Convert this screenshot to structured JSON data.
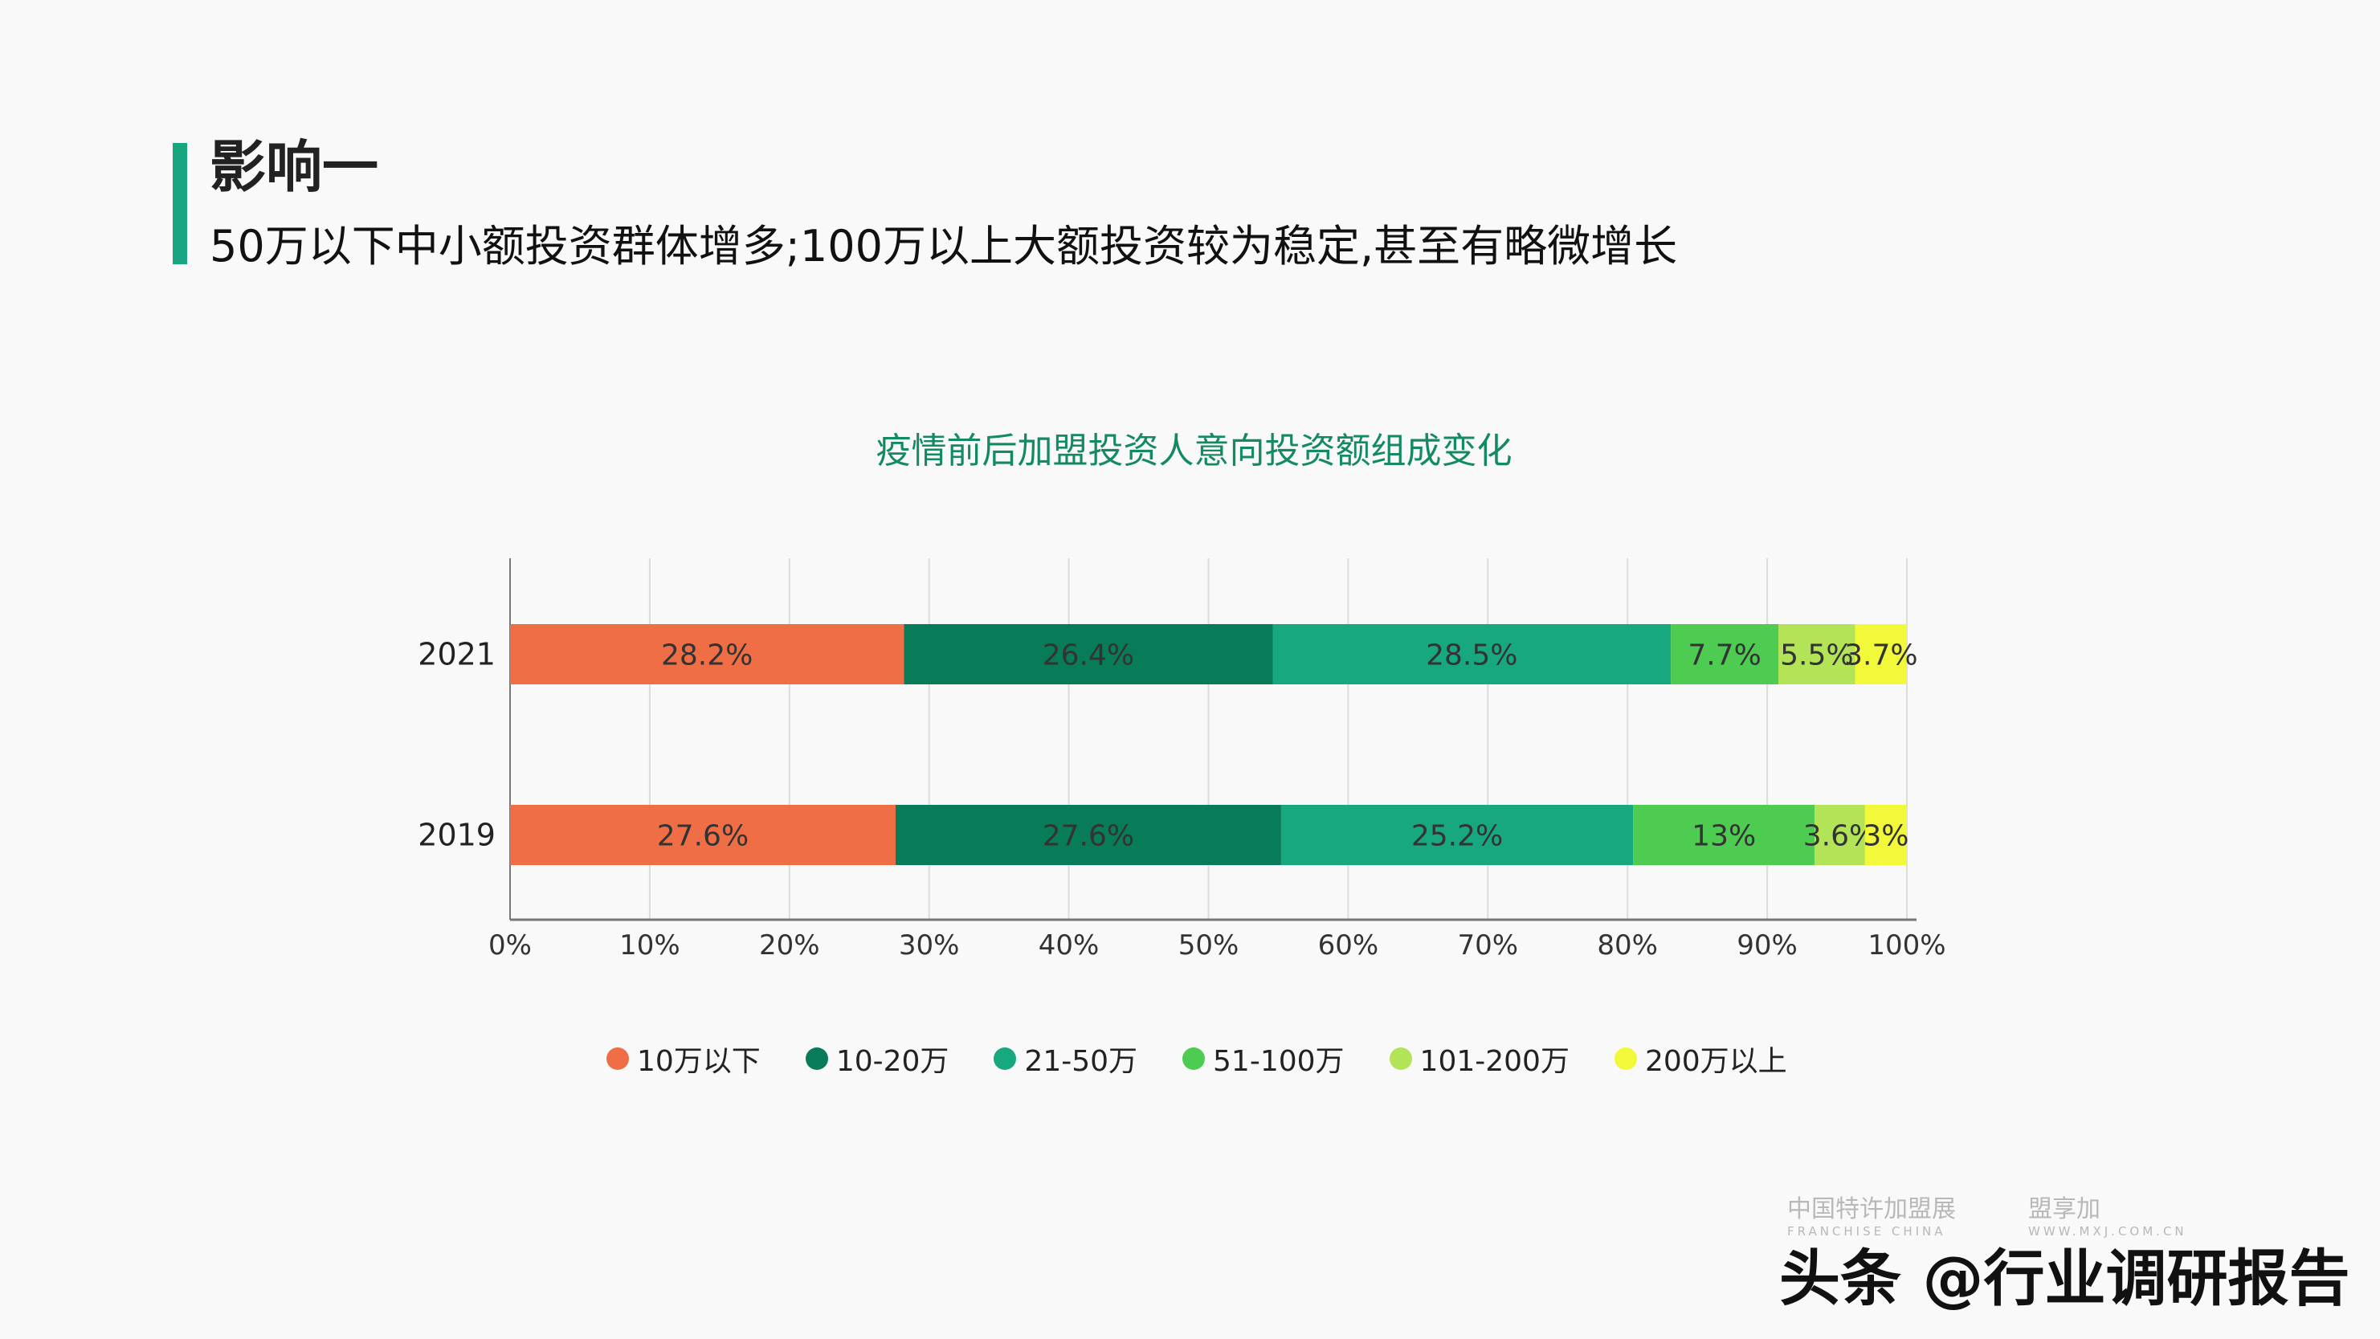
{
  "header": {
    "title": "影响一",
    "subtitle": "50万以下中小额投资群体增多;100万以上大额投资较为稳定,甚至有略微增长",
    "accent_color": "#17a67f"
  },
  "chart_data": {
    "type": "bar",
    "orientation": "horizontal",
    "stacked": "percent",
    "title": "疫情前后加盟投资人意向投资额组成变化",
    "categories": [
      "2021",
      "2019"
    ],
    "series": [
      {
        "name": "10万以下",
        "color": "#ef6e45",
        "values": [
          28.2,
          27.6
        ],
        "labels": [
          "28.2%",
          "27.6%"
        ]
      },
      {
        "name": "10-20万",
        "color": "#087b58",
        "values": [
          26.4,
          27.6
        ],
        "labels": [
          "26.4%",
          "27.6%"
        ]
      },
      {
        "name": "21-50万",
        "color": "#17a87f",
        "values": [
          28.5,
          25.2
        ],
        "labels": [
          "28.5%",
          "25.2%"
        ]
      },
      {
        "name": "51-100万",
        "color": "#4ecb51",
        "values": [
          7.7,
          13
        ],
        "labels": [
          "7.7%",
          "13%"
        ]
      },
      {
        "name": "101-200万",
        "color": "#b3e357",
        "values": [
          5.5,
          3.6
        ],
        "labels": [
          "5.5%",
          "3.6%"
        ]
      },
      {
        "name": "200万以上",
        "color": "#f2f93a",
        "values": [
          3.7,
          3
        ],
        "labels": [
          "3.7%",
          "3%"
        ]
      }
    ],
    "xlim": [
      0,
      100
    ],
    "xticks": [
      "0%",
      "10%",
      "20%",
      "30%",
      "40%",
      "50%",
      "60%",
      "70%",
      "80%",
      "90%",
      "100%"
    ],
    "grid": true,
    "legend": "bottom"
  },
  "watermarks": {
    "logo1": "中国特许加盟展",
    "logo1_sub": "FRANCHISE CHINA",
    "logo2": "盟享加",
    "logo2_sub": "WWW.MXJ.COM.CN",
    "credit": "头条 @行业调研报告"
  }
}
